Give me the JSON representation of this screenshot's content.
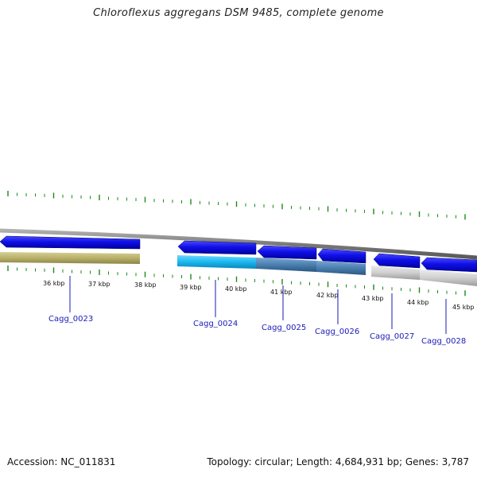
{
  "title": "Chloroflexus aggregans DSM 9485, complete genome",
  "footer": {
    "accession": "Accession: NC_011831",
    "topology": "Topology: circular; Length: 4,684,931 bp; Genes: 3,787"
  },
  "colors": {
    "backbone": "#8a8a8a",
    "tick": "#1a8a1a",
    "gene_label": "#1a1ab8",
    "cds_blue": "#1010e0",
    "olive": "#b8b06a",
    "cyan": "#1ab8f0",
    "steel": "#4a80b0",
    "grey": "#cfcfcf"
  },
  "scale": {
    "labels": [
      "36 kbp",
      "37 kbp",
      "38 kbp",
      "39 kbp",
      "40 kbp",
      "41 kbp",
      "42 kbp",
      "43 kbp",
      "44 kbp",
      "45 kbp"
    ]
  },
  "genes": [
    {
      "name": "Cagg_0023"
    },
    {
      "name": "Cagg_0024"
    },
    {
      "name": "Cagg_0025"
    },
    {
      "name": "Cagg_0026"
    },
    {
      "name": "Cagg_0027"
    },
    {
      "name": "Cagg_0028"
    }
  ]
}
